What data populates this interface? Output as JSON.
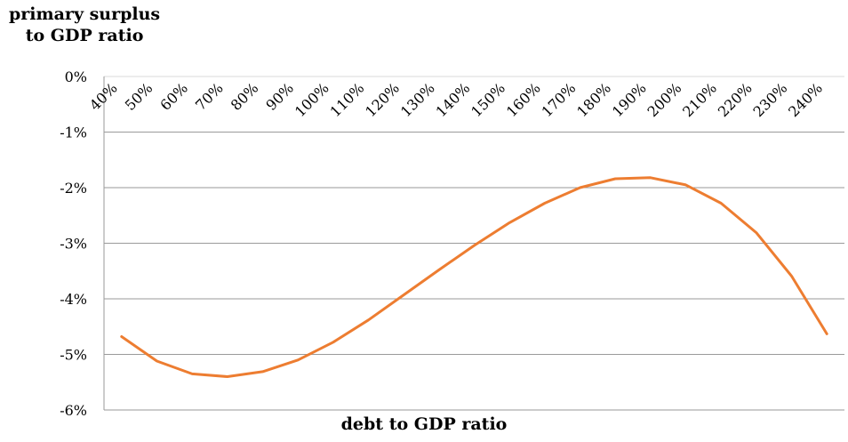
{
  "chart_data": {
    "type": "line",
    "ylabel": "primary surplus\nto GDP ratio",
    "xlabel": "debt to GDP ratio",
    "categories": [
      "40%",
      "50%",
      "60%",
      "70%",
      "80%",
      "90%",
      "100%",
      "110%",
      "120%",
      "130%",
      "140%",
      "150%",
      "160%",
      "170%",
      "180%",
      "190%",
      "200%",
      "210%",
      "220%",
      "230%",
      "240%"
    ],
    "y_ticks": [
      "0%",
      "-1%",
      "-2%",
      "-3%",
      "-4%",
      "-5%",
      "-6%"
    ],
    "ylim": [
      -6,
      0
    ],
    "grid": true,
    "series": [
      {
        "color": "#ED7D31",
        "values": [
          -4.68,
          -5.12,
          -5.35,
          -5.4,
          -5.31,
          -5.1,
          -4.78,
          -4.38,
          -3.93,
          -3.48,
          -3.04,
          -2.63,
          -2.28,
          -2.0,
          -1.84,
          -1.82,
          -1.95,
          -2.28,
          -2.81,
          -3.59,
          -4.63
        ]
      }
    ]
  }
}
